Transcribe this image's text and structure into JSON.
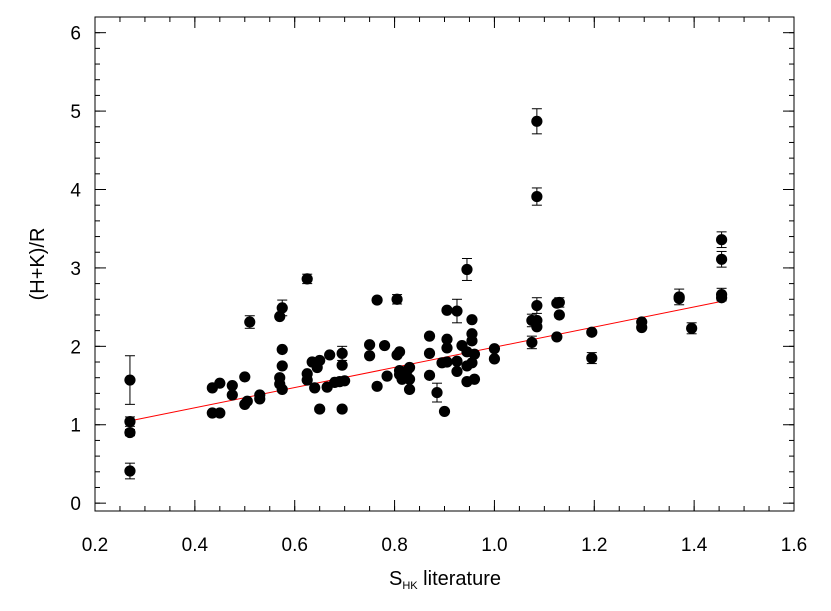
{
  "chart_data": {
    "type": "scatter",
    "xlabel_main": "S",
    "xlabel_sub": "HK",
    "xlabel_rest": " literature",
    "ylabel": "(H+K)/R",
    "xlim": [
      0.2,
      1.6
    ],
    "ylim": [
      -0.1,
      6.2
    ],
    "xticks": [
      "0.2",
      "0.4",
      "0.6",
      "0.8",
      "1.0",
      "1.2",
      "1.4",
      "1.6"
    ],
    "yticks": [
      "0",
      "1",
      "2",
      "3",
      "4",
      "5",
      "6"
    ],
    "minor_ticks": {
      "x_step": 0.05,
      "y_step": 0.2
    },
    "grid": false,
    "fit_line": {
      "color": "#ff0000",
      "x": [
        0.27,
        1.46
      ],
      "y": [
        1.05,
        2.58
      ]
    },
    "point_color": "#000000",
    "points": [
      {
        "x": 0.27,
        "y": 1.57,
        "err": 0.31
      },
      {
        "x": 0.27,
        "y": 1.04,
        "err": 0.06
      },
      {
        "x": 0.27,
        "y": 0.9,
        "err": 0.04
      },
      {
        "x": 0.27,
        "y": 0.41,
        "err": 0.1
      },
      {
        "x": 0.435,
        "y": 1.47
      },
      {
        "x": 0.435,
        "y": 1.15
      },
      {
        "x": 0.45,
        "y": 1.53
      },
      {
        "x": 0.45,
        "y": 1.15
      },
      {
        "x": 0.475,
        "y": 1.5
      },
      {
        "x": 0.475,
        "y": 1.38
      },
      {
        "x": 0.5,
        "y": 1.61
      },
      {
        "x": 0.5,
        "y": 1.26
      },
      {
        "x": 0.505,
        "y": 1.3
      },
      {
        "x": 0.51,
        "y": 2.31,
        "err": 0.08
      },
      {
        "x": 0.53,
        "y": 1.38
      },
      {
        "x": 0.53,
        "y": 1.33
      },
      {
        "x": 0.57,
        "y": 2.38
      },
      {
        "x": 0.57,
        "y": 1.6
      },
      {
        "x": 0.57,
        "y": 1.52
      },
      {
        "x": 0.575,
        "y": 2.49,
        "err": 0.1
      },
      {
        "x": 0.575,
        "y": 1.96
      },
      {
        "x": 0.575,
        "y": 1.75
      },
      {
        "x": 0.575,
        "y": 1.45
      },
      {
        "x": 0.625,
        "y": 2.86,
        "err": 0.06
      },
      {
        "x": 0.625,
        "y": 1.65
      },
      {
        "x": 0.625,
        "y": 1.57
      },
      {
        "x": 0.635,
        "y": 1.8
      },
      {
        "x": 0.64,
        "y": 1.47
      },
      {
        "x": 0.645,
        "y": 1.73
      },
      {
        "x": 0.65,
        "y": 1.82
      },
      {
        "x": 0.65,
        "y": 1.2
      },
      {
        "x": 0.665,
        "y": 1.48
      },
      {
        "x": 0.67,
        "y": 1.89
      },
      {
        "x": 0.68,
        "y": 1.54
      },
      {
        "x": 0.69,
        "y": 1.55
      },
      {
        "x": 0.695,
        "y": 1.91,
        "err": 0.09
      },
      {
        "x": 0.695,
        "y": 1.76
      },
      {
        "x": 0.695,
        "y": 1.2
      },
      {
        "x": 0.7,
        "y": 1.56
      },
      {
        "x": 0.75,
        "y": 2.02
      },
      {
        "x": 0.75,
        "y": 1.88
      },
      {
        "x": 0.765,
        "y": 2.59
      },
      {
        "x": 0.765,
        "y": 1.49
      },
      {
        "x": 0.78,
        "y": 2.01
      },
      {
        "x": 0.785,
        "y": 1.62
      },
      {
        "x": 0.805,
        "y": 2.6,
        "err": 0.06
      },
      {
        "x": 0.805,
        "y": 1.89
      },
      {
        "x": 0.81,
        "y": 1.93
      },
      {
        "x": 0.81,
        "y": 1.69
      },
      {
        "x": 0.81,
        "y": 1.64
      },
      {
        "x": 0.815,
        "y": 1.58
      },
      {
        "x": 0.825,
        "y": 1.69
      },
      {
        "x": 0.83,
        "y": 1.58
      },
      {
        "x": 0.83,
        "y": 1.45
      },
      {
        "x": 0.83,
        "y": 1.73
      },
      {
        "x": 0.87,
        "y": 2.13
      },
      {
        "x": 0.87,
        "y": 1.91
      },
      {
        "x": 0.87,
        "y": 1.63
      },
      {
        "x": 0.885,
        "y": 1.41,
        "err": 0.12
      },
      {
        "x": 0.895,
        "y": 1.79
      },
      {
        "x": 0.9,
        "y": 1.17
      },
      {
        "x": 0.905,
        "y": 2.46
      },
      {
        "x": 0.905,
        "y": 2.09
      },
      {
        "x": 0.905,
        "y": 1.98
      },
      {
        "x": 0.905,
        "y": 1.8
      },
      {
        "x": 0.925,
        "y": 2.45,
        "err": 0.15
      },
      {
        "x": 0.925,
        "y": 1.81
      },
      {
        "x": 0.925,
        "y": 1.68
      },
      {
        "x": 0.935,
        "y": 2.01
      },
      {
        "x": 0.945,
        "y": 2.98,
        "err": 0.14
      },
      {
        "x": 0.945,
        "y": 1.93
      },
      {
        "x": 0.945,
        "y": 1.75
      },
      {
        "x": 0.945,
        "y": 1.55
      },
      {
        "x": 0.955,
        "y": 2.34
      },
      {
        "x": 0.955,
        "y": 2.16
      },
      {
        "x": 0.955,
        "y": 2.07
      },
      {
        "x": 0.955,
        "y": 1.79
      },
      {
        "x": 0.96,
        "y": 1.9
      },
      {
        "x": 0.96,
        "y": 1.58
      },
      {
        "x": 1.0,
        "y": 1.97
      },
      {
        "x": 1.0,
        "y": 1.84
      },
      {
        "x": 1.075,
        "y": 2.33,
        "err": 0.08
      },
      {
        "x": 1.075,
        "y": 2.05,
        "err": 0.08
      },
      {
        "x": 1.085,
        "y": 4.87,
        "err": 0.16
      },
      {
        "x": 1.085,
        "y": 3.91,
        "err": 0.11
      },
      {
        "x": 1.085,
        "y": 2.52,
        "err": 0.1
      },
      {
        "x": 1.085,
        "y": 2.33
      },
      {
        "x": 1.085,
        "y": 2.25
      },
      {
        "x": 1.125,
        "y": 2.55
      },
      {
        "x": 1.13,
        "y": 2.56,
        "err": 0.06
      },
      {
        "x": 1.13,
        "y": 2.4
      },
      {
        "x": 1.125,
        "y": 2.12
      },
      {
        "x": 1.195,
        "y": 2.18
      },
      {
        "x": 1.195,
        "y": 1.85,
        "err": 0.07
      },
      {
        "x": 1.295,
        "y": 2.31
      },
      {
        "x": 1.295,
        "y": 2.24
      },
      {
        "x": 1.37,
        "y": 2.63,
        "err": 0.1
      },
      {
        "x": 1.37,
        "y": 2.61
      },
      {
        "x": 1.395,
        "y": 2.23,
        "err": 0.07
      },
      {
        "x": 1.455,
        "y": 3.36,
        "err": 0.1
      },
      {
        "x": 1.455,
        "y": 3.11,
        "err": 0.1
      },
      {
        "x": 1.455,
        "y": 2.66,
        "err": 0.08
      },
      {
        "x": 1.455,
        "y": 2.62
      }
    ]
  }
}
